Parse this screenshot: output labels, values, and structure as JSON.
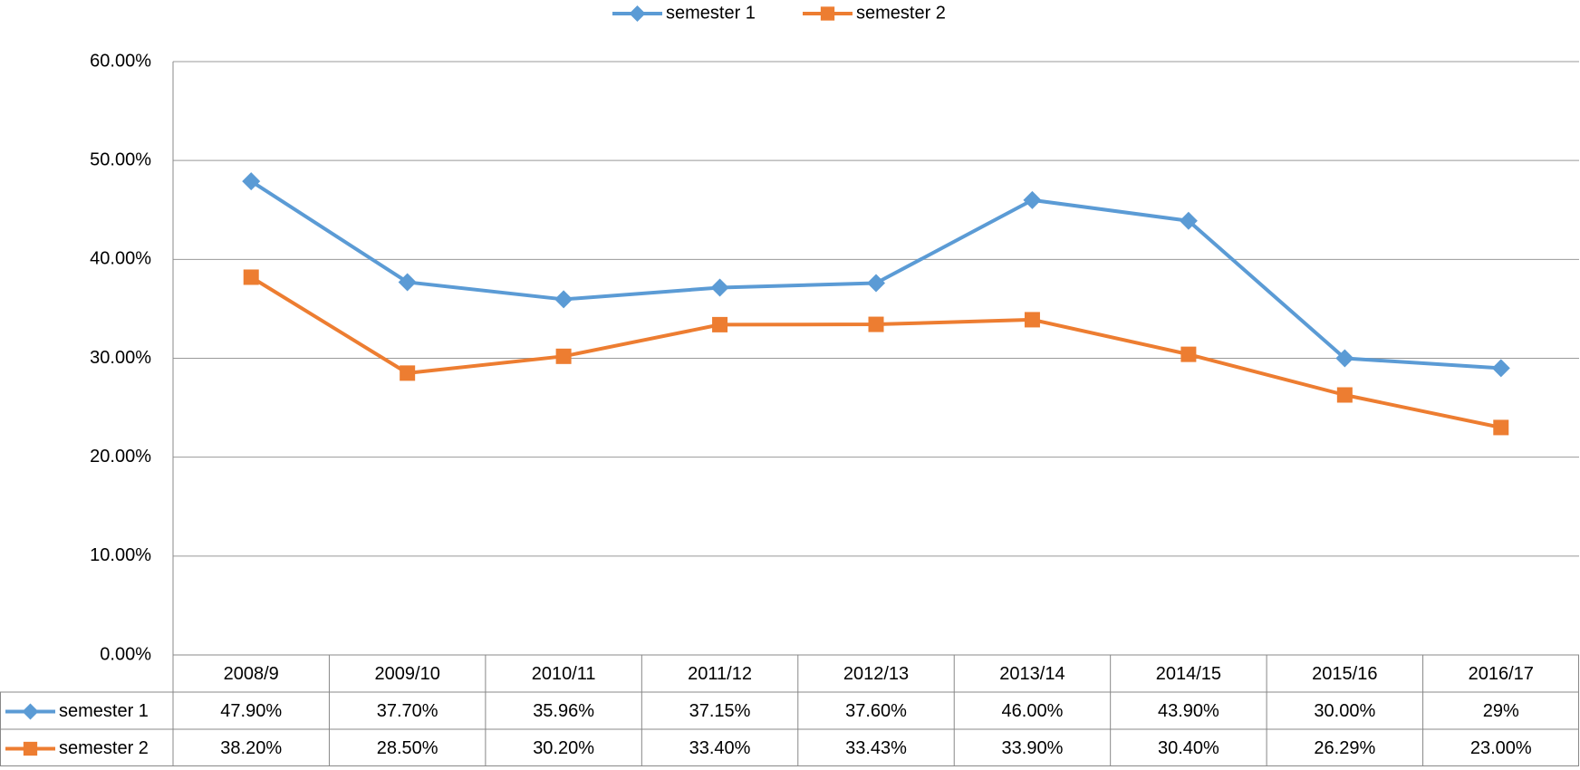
{
  "chart_data": {
    "type": "line",
    "categories": [
      "2008/9",
      "2009/10",
      "2010/11",
      "2011/12",
      "2012/13",
      "2013/14",
      "2014/15",
      "2015/16",
      "2016/17"
    ],
    "series": [
      {
        "name": "semester 1",
        "color": "#5b9bd5",
        "marker": "diamond",
        "values": [
          47.9,
          37.7,
          35.96,
          37.15,
          37.6,
          46.0,
          43.9,
          30.0,
          29
        ],
        "value_labels": [
          "47.90%",
          "37.70%",
          "35.96%",
          "37.15%",
          "37.60%",
          "46.00%",
          "43.90%",
          "30.00%",
          "29%"
        ]
      },
      {
        "name": "semester 2",
        "color": "#ed7d31",
        "marker": "square",
        "values": [
          38.2,
          28.5,
          30.2,
          33.4,
          33.43,
          33.9,
          30.4,
          26.29,
          23.0
        ],
        "value_labels": [
          "38.20%",
          "28.50%",
          "30.20%",
          "33.40%",
          "33.43%",
          "33.90%",
          "30.40%",
          "26.29%",
          "23.00%"
        ]
      }
    ],
    "ylim": [
      0,
      60
    ],
    "yticks": [
      {
        "value": 0,
        "label": "0.00%"
      },
      {
        "value": 10,
        "label": "10.00%"
      },
      {
        "value": 20,
        "label": "20.00%"
      },
      {
        "value": 30,
        "label": "30.00%"
      },
      {
        "value": 40,
        "label": "40.00%"
      },
      {
        "value": 50,
        "label": "50.00%"
      },
      {
        "value": 60,
        "label": "60.00%"
      }
    ],
    "grid": true,
    "legend": "top",
    "data_table": true
  }
}
